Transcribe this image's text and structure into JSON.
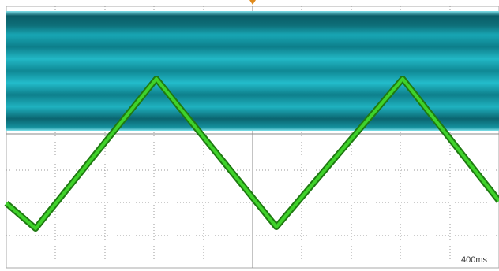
{
  "timebase_label": "400ms"
}
